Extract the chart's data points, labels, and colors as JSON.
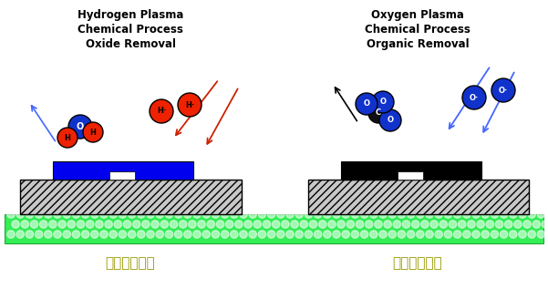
{
  "bg_color": "#ffffff",
  "title_left": "Hydrogen Plasma\nChemical Process\nOxide Removal",
  "title_right": "Oxygen Plasma\nChemical Process\nOrganic Removal",
  "label_left": "化学清洗工艺",
  "label_right": "化学清洗工艺",
  "green_color": "#33ee55",
  "red_atom_color": "#ee2200",
  "blue_atom_color": "#1133cc",
  "black_atom_color": "#111111",
  "substrate_fc": "#c8c8c8",
  "blue_layer_color": "#0000ee",
  "black_layer_color": "#000000"
}
